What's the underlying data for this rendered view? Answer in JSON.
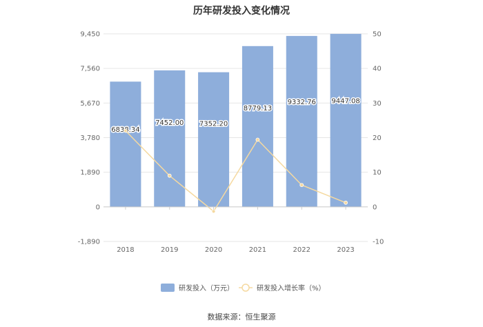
{
  "chart_data": {
    "type": "bar",
    "title": "历年研发投入变化情况",
    "categories": [
      "2018",
      "2019",
      "2020",
      "2021",
      "2022",
      "2023"
    ],
    "series": [
      {
        "name": "研发投入（万元）",
        "type": "bar",
        "axis": "left",
        "values": [
          6838.34,
          7452.0,
          7352.2,
          8779.13,
          9332.76,
          9447.08
        ],
        "labels": [
          "6838.34",
          "7452.00",
          "7352.20",
          "8779.13",
          "9332.76",
          "9447.08"
        ],
        "color": "#8eaedb"
      },
      {
        "name": "研发投入增长率（%）",
        "type": "line",
        "axis": "right",
        "values": [
          22.0,
          9.0,
          -1.3,
          19.4,
          6.3,
          1.2
        ],
        "color": "#f5d9a0"
      }
    ],
    "y_left": {
      "ticks": [
        "-1,890",
        "0",
        "1,890",
        "3,780",
        "5,670",
        "7,560",
        "9,450"
      ],
      "ylim": [
        -1890,
        9450
      ]
    },
    "y_right": {
      "ticks": [
        "-10",
        "0",
        "10",
        "20",
        "30",
        "40",
        "50"
      ],
      "ylim": [
        -10,
        50
      ]
    },
    "grid": true,
    "legend_position": "bottom"
  },
  "footer": {
    "source": "数据来源：恒生聚源"
  }
}
